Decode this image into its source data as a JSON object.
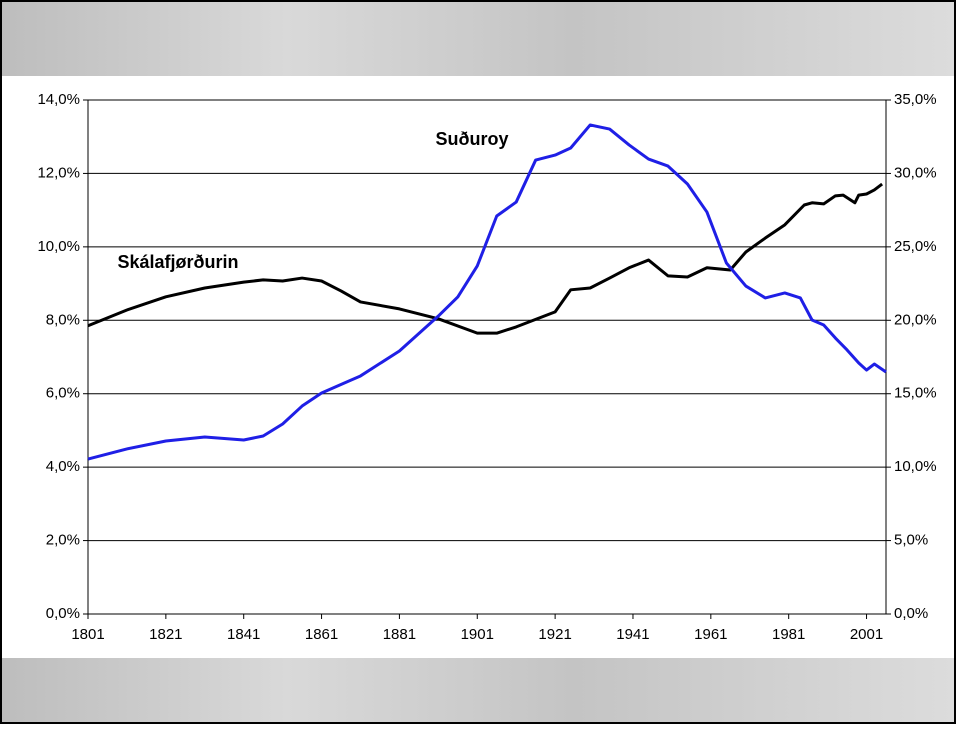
{
  "chart_data": {
    "type": "line",
    "xlim": [
      1801,
      2006
    ],
    "xticks": [
      1801,
      1821,
      1841,
      1861,
      1881,
      1901,
      1921,
      1941,
      1961,
      1981,
      2001
    ],
    "ylim": [
      0,
      14
    ],
    "yticks": [
      {
        "value": 0,
        "label": "0,0%"
      },
      {
        "value": 2,
        "label": "2,0%"
      },
      {
        "value": 4,
        "label": "4,0%"
      },
      {
        "value": 6,
        "label": "6,0%"
      },
      {
        "value": 8,
        "label": "8,0%"
      },
      {
        "value": 10,
        "label": "10,0%"
      },
      {
        "value": 12,
        "label": "12,0%"
      },
      {
        "value": 14,
        "label": "14,0%"
      }
    ],
    "y2lim": [
      0,
      35
    ],
    "y2ticks": [
      {
        "value": 0,
        "label": "0,0%"
      },
      {
        "value": 5,
        "label": "5,0%"
      },
      {
        "value": 10,
        "label": "10,0%"
      },
      {
        "value": 15,
        "label": "15,0%"
      },
      {
        "value": 20,
        "label": "20,0%"
      },
      {
        "value": 25,
        "label": "25,0%"
      },
      {
        "value": 30,
        "label": "30,0%"
      },
      {
        "value": 35,
        "label": "35,0%"
      }
    ],
    "grid": true,
    "series": [
      {
        "name": "Skálafjørðurin",
        "color": "#000000",
        "axis": "y",
        "x": [
          1801,
          1811,
          1821,
          1831,
          1841,
          1846,
          1851,
          1856,
          1861,
          1866,
          1871,
          1881,
          1891,
          1901,
          1906,
          1911,
          1921,
          1925,
          1930,
          1935,
          1940,
          1945,
          1950,
          1955,
          1960,
          1966,
          1970,
          1975,
          1980,
          1985,
          1987,
          1990,
          1993,
          1995,
          1998,
          1999,
          2001,
          2003,
          2005
        ],
        "values": [
          7.85,
          8.28,
          8.64,
          8.88,
          9.04,
          9.1,
          9.07,
          9.15,
          9.07,
          8.8,
          8.5,
          8.31,
          8.04,
          7.65,
          7.65,
          7.82,
          8.23,
          8.83,
          8.88,
          9.15,
          9.43,
          9.64,
          9.21,
          9.18,
          9.43,
          9.37,
          9.86,
          10.24,
          10.6,
          11.14,
          11.2,
          11.17,
          11.39,
          11.41,
          11.2,
          11.41,
          11.44,
          11.55,
          11.71
        ]
      },
      {
        "name": "Suðuroy",
        "color": "#1f1fe6",
        "axis": "y2",
        "x": [
          1801,
          1811,
          1821,
          1831,
          1841,
          1846,
          1851,
          1856,
          1861,
          1871,
          1881,
          1891,
          1896,
          1901,
          1906,
          1911,
          1916,
          1921,
          1925,
          1930,
          1935,
          1940,
          1945,
          1950,
          1955,
          1960,
          1965,
          1970,
          1975,
          1980,
          1984,
          1987,
          1990,
          1993,
          1996,
          1999,
          2001,
          2003,
          2006
        ],
        "values": [
          10.55,
          11.24,
          11.78,
          12.05,
          11.85,
          12.12,
          12.94,
          14.16,
          15.05,
          16.21,
          17.91,
          20.29,
          21.59,
          23.7,
          27.1,
          28.05,
          30.91,
          31.25,
          31.73,
          33.3,
          33.02,
          31.94,
          30.98,
          30.5,
          29.28,
          27.37,
          23.9,
          22.33,
          21.52,
          21.86,
          21.52,
          20.02,
          19.68,
          18.79,
          17.98,
          17.09,
          16.61,
          17.02,
          16.48
        ]
      }
    ]
  }
}
